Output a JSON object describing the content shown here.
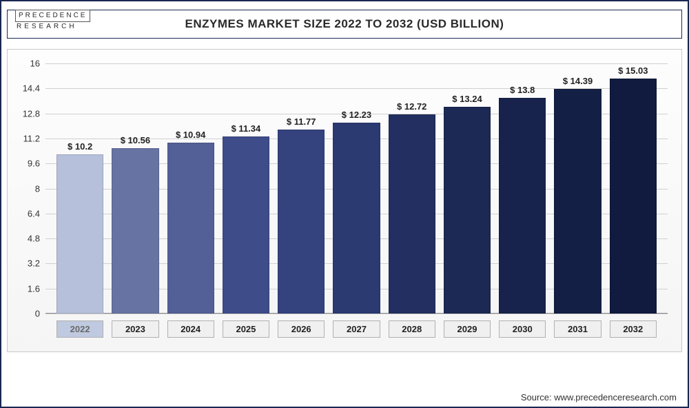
{
  "logo": {
    "line1": "PRECEDENCE",
    "line2": "RESEARCH"
  },
  "title": "ENZYMES MARKET SIZE 2022 TO 2032 (USD BILLION)",
  "source": "Source: www.precedenceresearch.com",
  "chart": {
    "type": "bar",
    "ylim_max": 16,
    "yticks": [
      0,
      1.6,
      3.2,
      4.8,
      6.4,
      8,
      9.6,
      11.2,
      12.8,
      14.4,
      16
    ],
    "background_color": "#fafafa",
    "grid_color": "#d0d0d0",
    "label_color_light": "#6a6a6a",
    "label_color_dark": "#222222",
    "xbox_bg": "#f0f0f0",
    "xbox_bg_highlight": "#bfc9e0",
    "bars": [
      {
        "year": "2022",
        "value": 10.2,
        "label": "$ 10.2",
        "color": "#b7c0db",
        "highlight": true
      },
      {
        "year": "2023",
        "value": 10.56,
        "label": "$ 10.56",
        "color": "#6773a3",
        "highlight": false
      },
      {
        "year": "2024",
        "value": 10.94,
        "label": "$ 10.94",
        "color": "#535f97",
        "highlight": false
      },
      {
        "year": "2025",
        "value": 11.34,
        "label": "$ 11.34",
        "color": "#3f4c8a",
        "highlight": false
      },
      {
        "year": "2026",
        "value": 11.77,
        "label": "$ 11.77",
        "color": "#34427e",
        "highlight": false
      },
      {
        "year": "2027",
        "value": 12.23,
        "label": "$ 12.23",
        "color": "#2c3a72",
        "highlight": false
      },
      {
        "year": "2028",
        "value": 12.72,
        "label": "$ 12.72",
        "color": "#222f60",
        "highlight": false
      },
      {
        "year": "2029",
        "value": 13.24,
        "label": "$ 13.24",
        "color": "#1c2954",
        "highlight": false
      },
      {
        "year": "2030",
        "value": 13.8,
        "label": "$ 13.8",
        "color": "#17234c",
        "highlight": false
      },
      {
        "year": "2031",
        "value": 14.39,
        "label": "$ 14.39",
        "color": "#131f45",
        "highlight": false
      },
      {
        "year": "2032",
        "value": 15.03,
        "label": "$ 15.03",
        "color": "#101b3f",
        "highlight": false
      }
    ]
  }
}
